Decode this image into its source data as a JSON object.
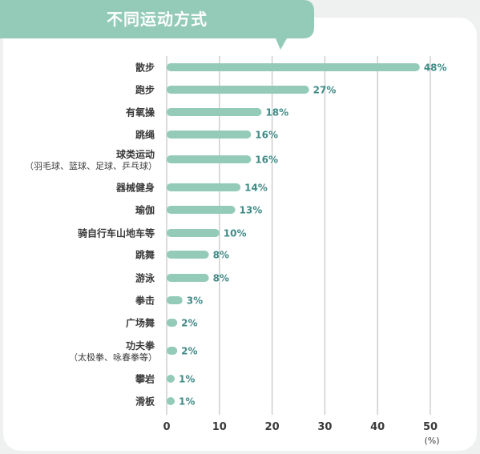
{
  "colors": {
    "bar": "#93cbb8",
    "grid": "#cfcfcf",
    "value": "#3f8b86",
    "title_bg": "#93cbb8"
  },
  "chart_data": {
    "type": "bar",
    "orientation": "horizontal",
    "title": "不同运动方式",
    "categories": [
      {
        "label": "散步",
        "sub": ""
      },
      {
        "label": "跑步",
        "sub": ""
      },
      {
        "label": "有氧操",
        "sub": ""
      },
      {
        "label": "跳绳",
        "sub": ""
      },
      {
        "label": "球类运动",
        "sub": "（羽毛球、篮球、足球、乒乓球）"
      },
      {
        "label": "器械健身",
        "sub": ""
      },
      {
        "label": "瑜伽",
        "sub": ""
      },
      {
        "label": "骑自行车山地车等",
        "sub": ""
      },
      {
        "label": "跳舞",
        "sub": ""
      },
      {
        "label": "游泳",
        "sub": ""
      },
      {
        "label": "拳击",
        "sub": ""
      },
      {
        "label": "广场舞",
        "sub": ""
      },
      {
        "label": "功夫拳",
        "sub": "（太极拳、咏春拳等）"
      },
      {
        "label": "攀岩",
        "sub": ""
      },
      {
        "label": "滑板",
        "sub": ""
      }
    ],
    "values": [
      48,
      27,
      18,
      16,
      16,
      14,
      13,
      10,
      8,
      8,
      3,
      2,
      2,
      1,
      1
    ],
    "value_labels": [
      "48%",
      "27%",
      "18%",
      "16%",
      "16%",
      "14%",
      "13%",
      "10%",
      "8%",
      "8%",
      "3%",
      "2%",
      "2%",
      "1%",
      "1%"
    ],
    "xlim": [
      0,
      50
    ],
    "xticks": [
      0,
      10,
      20,
      30,
      40,
      50
    ],
    "xtick_labels": [
      "0",
      "10",
      "20",
      "30",
      "40",
      "50"
    ],
    "x_unit": "(%)",
    "grid": true
  }
}
